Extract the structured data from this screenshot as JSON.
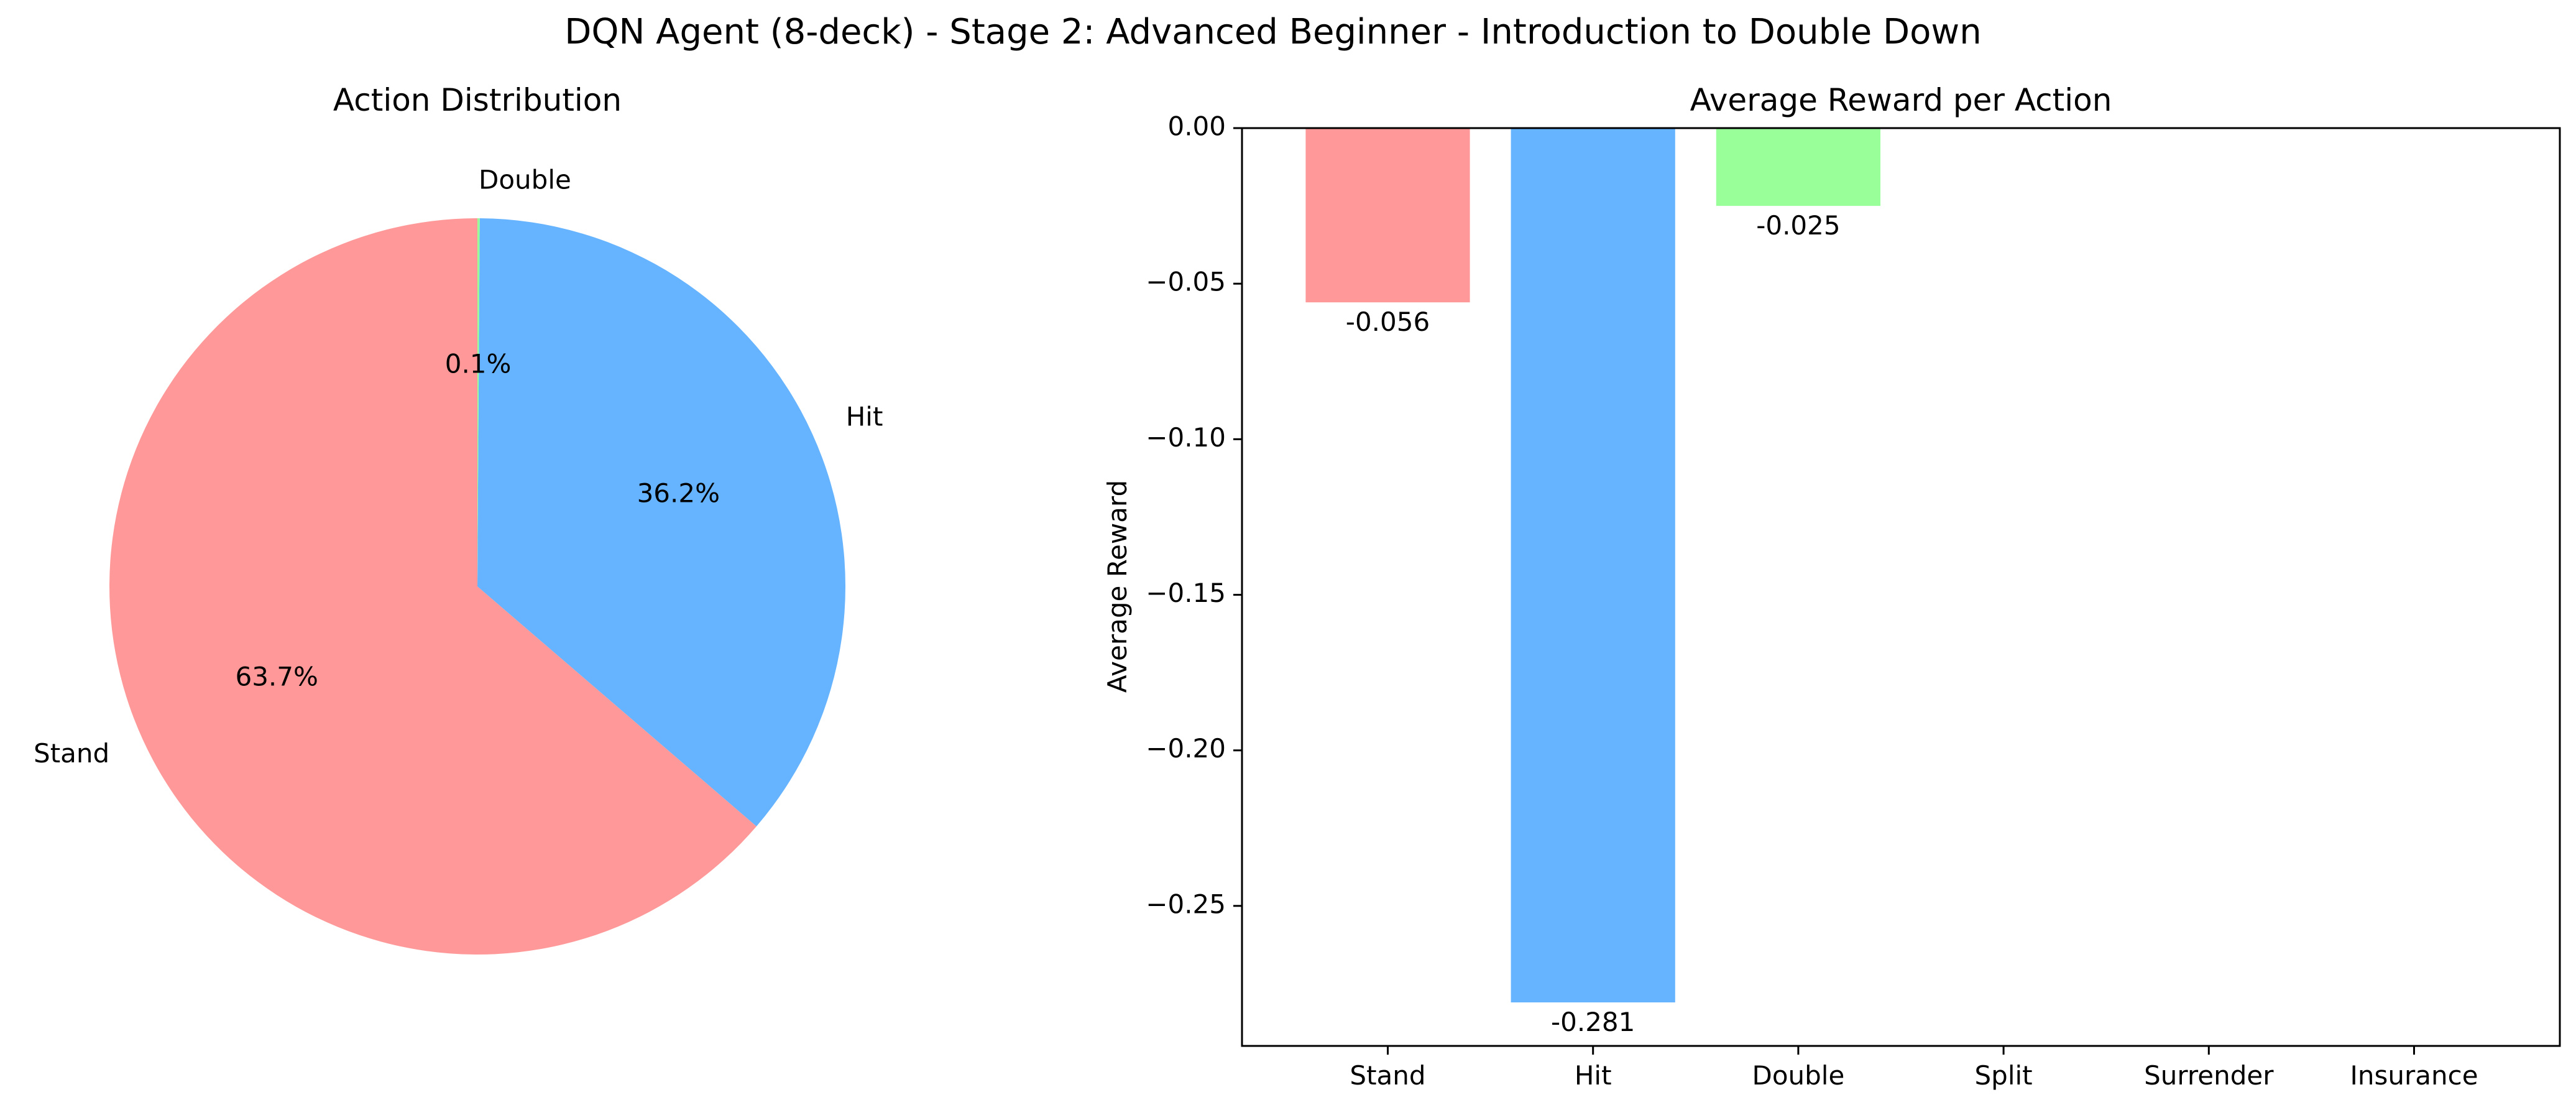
{
  "figure": {
    "title": "DQN Agent (8-deck) - Stage 2: Advanced Beginner - Introduction to Double Down"
  },
  "chart_data": [
    {
      "type": "pie",
      "title": "Action Distribution",
      "labels": [
        "Stand",
        "Hit",
        "Double"
      ],
      "values": [
        63.7,
        36.2,
        0.1
      ],
      "value_labels": [
        "63.7%",
        "36.2%",
        "0.1%"
      ],
      "colors": [
        "#ff9999",
        "#66b3ff",
        "#99ff99"
      ],
      "start_angle_deg": 90,
      "direction": "counterclockwise"
    },
    {
      "type": "bar",
      "title": "Average Reward per Action",
      "xlabel": "",
      "ylabel": "Average Reward",
      "categories": [
        "Stand",
        "Hit",
        "Double",
        "Split",
        "Surrender",
        "Insurance"
      ],
      "values": [
        -0.056,
        -0.281,
        -0.025,
        null,
        null,
        null
      ],
      "value_labels": [
        "-0.056",
        "-0.281",
        "-0.025",
        "",
        "",
        ""
      ],
      "colors": [
        "#ff9999",
        "#66b3ff",
        "#99ff99"
      ],
      "yticks": [
        "0.00",
        "−0.05",
        "−0.10",
        "−0.15",
        "−0.20",
        "−0.25"
      ],
      "ylim": [
        -0.295,
        0.0
      ],
      "grid": false
    }
  ]
}
